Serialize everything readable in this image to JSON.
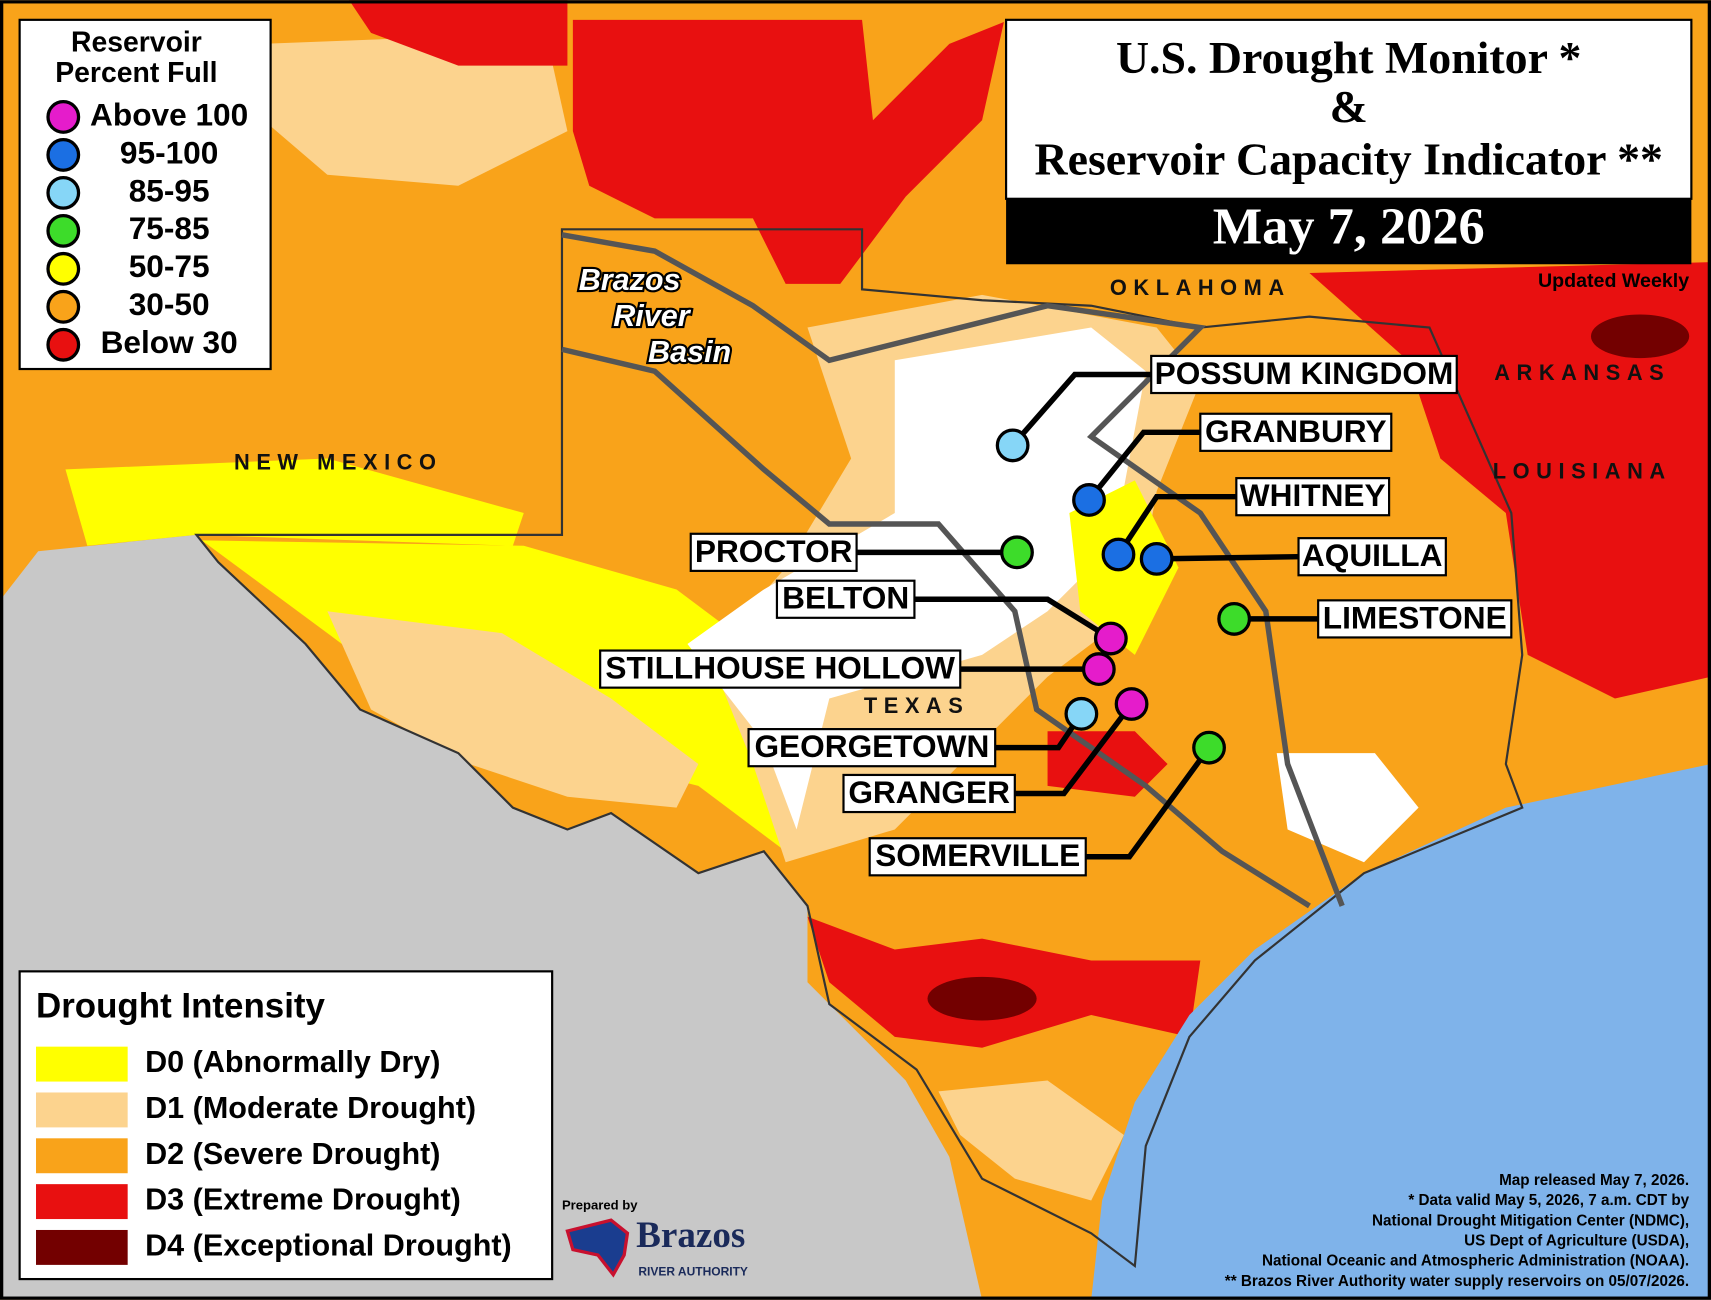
{
  "header": {
    "title_line1": "U.S. Drought Monitor *",
    "title_line2": "&",
    "title_line3": "Reservoir Capacity Indicator **",
    "date": "May 7, 2026",
    "updated": "Updated Weekly"
  },
  "reservoir_legend": {
    "title_line1": "Reservoir",
    "title_line2": "Percent Full",
    "items": [
      {
        "label": "Above 100",
        "color": "#e51ccb"
      },
      {
        "label": "95-100",
        "color": "#1b6fe3"
      },
      {
        "label": "85-95",
        "color": "#86d6f7"
      },
      {
        "label": "75-85",
        "color": "#3ddc2a"
      },
      {
        "label": "50-75",
        "color": "#ffff00"
      },
      {
        "label": "30-50",
        "color": "#f9a31a"
      },
      {
        "label": "Below 30",
        "color": "#e81010"
      }
    ]
  },
  "drought_legend": {
    "title": "Drought Intensity",
    "items": [
      {
        "label": "D0 (Abnormally Dry)",
        "color": "#ffff00"
      },
      {
        "label": "D1 (Moderate Drought)",
        "color": "#fcd38e"
      },
      {
        "label": "D2 (Severe Drought)",
        "color": "#f9a31a"
      },
      {
        "label": "D3 (Extreme Drought)",
        "color": "#e81010"
      },
      {
        "label": "D4 (Exceptional Drought)",
        "color": "#730000"
      }
    ]
  },
  "map_labels": {
    "states": [
      "OKLAHOMA",
      "ARKANSAS",
      "LOUISIANA",
      "NEW MEXICO",
      "TEXAS"
    ],
    "basin": [
      "Brazos",
      "River",
      "Basin"
    ]
  },
  "reservoirs": [
    {
      "name": "POSSUM KINGDOM",
      "color": "#86d6f7"
    },
    {
      "name": "GRANBURY",
      "color": "#1b6fe3"
    },
    {
      "name": "WHITNEY",
      "color": "#1b6fe3"
    },
    {
      "name": "AQUILLA",
      "color": "#1b6fe3"
    },
    {
      "name": "LIMESTONE",
      "color": "#3ddc2a"
    },
    {
      "name": "PROCTOR",
      "color": "#3ddc2a"
    },
    {
      "name": "BELTON",
      "color": "#e51ccb"
    },
    {
      "name": "STILLHOUSE HOLLOW",
      "color": "#e51ccb"
    },
    {
      "name": "GEORGETOWN",
      "color": "#86d6f7"
    },
    {
      "name": "GRANGER",
      "color": "#e51ccb"
    },
    {
      "name": "SOMERVILLE",
      "color": "#3ddc2a"
    }
  ],
  "credits": {
    "prepared_by": "Prepared by",
    "org": "Brazos",
    "org_sub": "RIVER AUTHORITY",
    "notes": [
      "Map released May 7, 2026.",
      "* Data valid May 5, 2026, 7 a.m. CDT by",
      "National Drought Mitigation Center (NDMC),",
      "US Dept of Agriculture (USDA),",
      "National Oceanic and Atmospheric Administration (NOAA).",
      "** Brazos River Authority water supply reservoirs on 05/07/2026."
    ]
  }
}
